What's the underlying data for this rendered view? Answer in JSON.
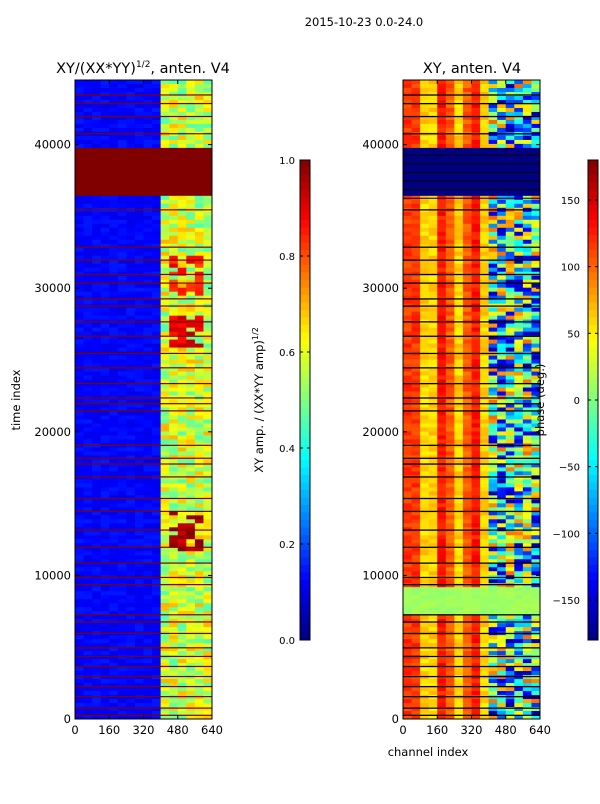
{
  "figure": {
    "suptitle": "2015-10-23 0.0-24.0"
  },
  "chart_data": [
    {
      "type": "heatmap",
      "title_base": "XY/(XX*YY)",
      "title_exp": "1/2",
      "title_suffix": ", anten. V4",
      "xlabel": "",
      "ylabel": "time index",
      "xlim": [
        0,
        640
      ],
      "ylim": [
        0,
        44500
      ],
      "xticks": [
        0,
        160,
        320,
        480,
        640
      ],
      "yticks": [
        0,
        10000,
        20000,
        30000,
        40000
      ],
      "colorbar": {
        "label_base": "XY amp. / (XX*YY amp)",
        "label_exp": "1/2",
        "range": [
          0.0,
          1.0
        ],
        "ticks": [
          "0.0",
          "0.2",
          "0.4",
          "0.6",
          "0.8",
          "1.0"
        ],
        "tick_values": [
          0.0,
          0.2,
          0.4,
          0.6,
          0.8,
          1.0
        ],
        "colormap": "jet"
      },
      "background_value": 0.1,
      "high_band_channels": [
        420,
        640
      ],
      "high_band_value": 0.45,
      "saturated_time_ranges": [
        [
          36300,
          39800
        ]
      ],
      "flagged_rows": [
        300,
        800,
        1600,
        2300,
        3000,
        3700,
        4400,
        5000,
        6000,
        6800,
        7300,
        9400,
        9900,
        10900,
        12000,
        13200,
        14500,
        15400,
        16900,
        17800,
        18200,
        19100,
        21500,
        22000,
        22400,
        23400,
        24500,
        25500,
        26700,
        27700,
        28800,
        29300,
        30400,
        31000,
        32000,
        32900,
        35500,
        40800,
        42000,
        42900,
        43500
      ],
      "bright_patches": [
        {
          "time": [
            11800,
            14600
          ],
          "channels": [
            440,
            600
          ],
          "value": 0.9
        },
        {
          "time": [
            26000,
            28000
          ],
          "channels": [
            440,
            600
          ],
          "value": 0.85
        },
        {
          "time": [
            29500,
            32300
          ],
          "channels": [
            440,
            600
          ],
          "value": 0.8
        }
      ]
    },
    {
      "type": "heatmap",
      "title": "XY, anten. V4",
      "xlabel": "channel index",
      "ylabel": "",
      "xlim": [
        0,
        640
      ],
      "ylim": [
        0,
        44500
      ],
      "xticks": [
        0,
        160,
        320,
        480,
        640
      ],
      "yticks": [
        0,
        10000,
        20000,
        30000,
        40000
      ],
      "colorbar": {
        "label": "phase (deg.)",
        "range": [
          -180,
          180
        ],
        "ticks": [
          "−150",
          "−100",
          "−50",
          "0",
          "50",
          "100",
          "150"
        ],
        "tick_values": [
          -150,
          -100,
          -50,
          0,
          50,
          100,
          150
        ],
        "colormap": "jet"
      },
      "stripe_centers_channels": [
        40,
        190,
        330
      ],
      "stripe_phase_deg": 140,
      "background_phase_deg": 60,
      "noisy_channels": [
        400,
        640
      ],
      "flagged_value_deg": -180,
      "flag_band_time_ranges": [
        [
          36300,
          39800
        ]
      ],
      "green_band_time_ranges": [
        [
          7200,
          9200
        ]
      ],
      "flagged_rows": [
        300,
        800,
        1600,
        2300,
        3000,
        3700,
        4400,
        5000,
        6000,
        6800,
        7300,
        9400,
        9900,
        10900,
        12000,
        13200,
        14500,
        15400,
        16900,
        17800,
        18200,
        19100,
        21500,
        22000,
        22400,
        23400,
        24500,
        25500,
        26700,
        27700,
        28800,
        29300,
        30400,
        31000,
        32000,
        32900,
        35500,
        40800,
        42000,
        42900,
        43500
      ]
    }
  ]
}
